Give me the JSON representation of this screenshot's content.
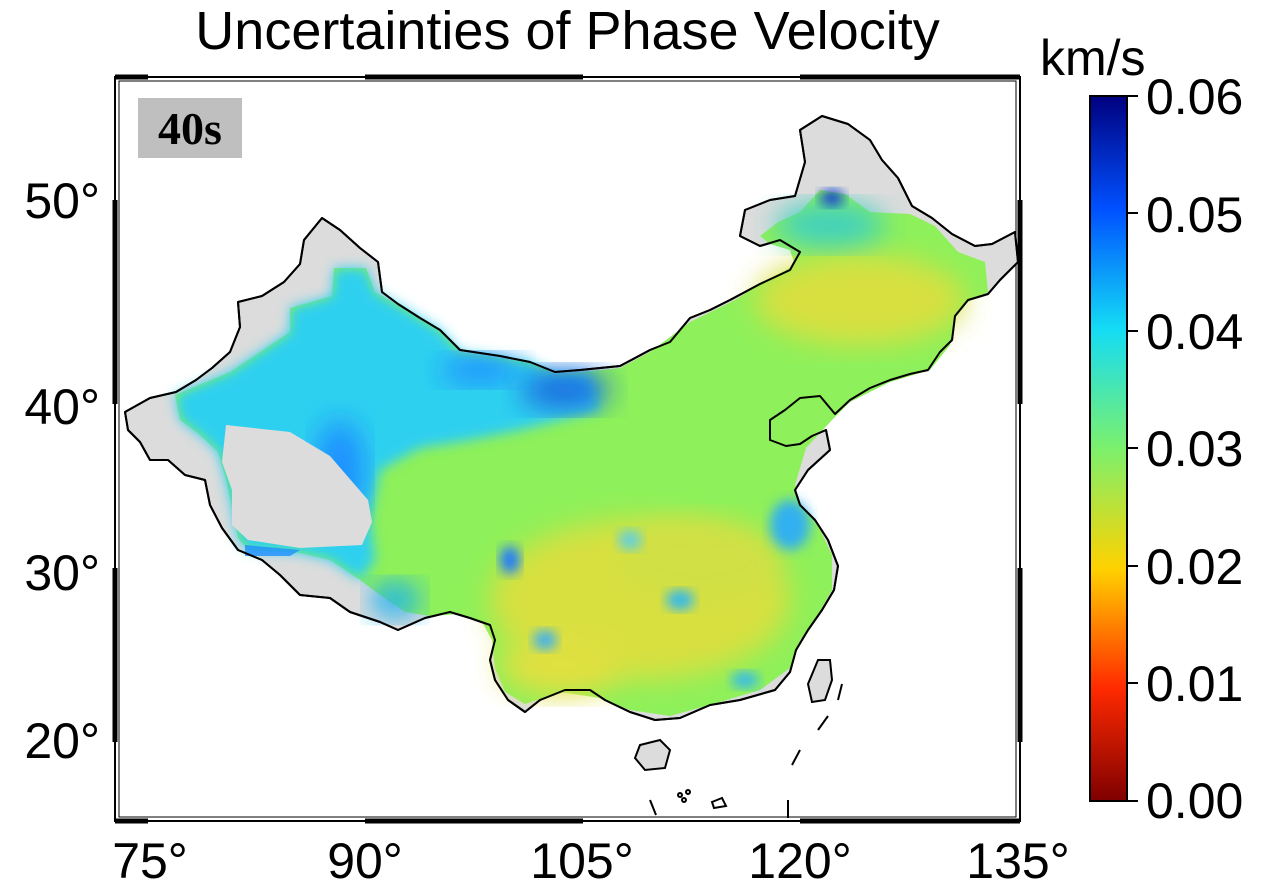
{
  "title": "Uncertainties of Phase Velocity",
  "period_label": "40s",
  "map": {
    "lon_range": [
      74,
      135
    ],
    "lat_range": [
      15.8,
      56
    ],
    "land_color": "#dcdcdc",
    "coast_color": "#000000"
  },
  "x_ticks": [
    "75°",
    "90°",
    "105°",
    "120°",
    "135°"
  ],
  "y_ticks": [
    "50°",
    "40°",
    "30°",
    "20°"
  ],
  "colorbar": {
    "unit": "km/s",
    "min": 0.0,
    "max": 0.06,
    "ticks": [
      "0.06",
      "0.05",
      "0.04",
      "0.03",
      "0.02",
      "0.01",
      "0.00"
    ],
    "colormap": [
      "#7f0000",
      "#ff2a00",
      "#ffd200",
      "#7cf06d",
      "#14dcf5",
      "#0050ff",
      "#00007f"
    ]
  },
  "colors": {
    "low_uncertainty": "#e8d830",
    "mid_uncertainty": "#8ef05a",
    "high_uncertainty": "#1ec8ff",
    "very_high": "#1a6ee0"
  }
}
